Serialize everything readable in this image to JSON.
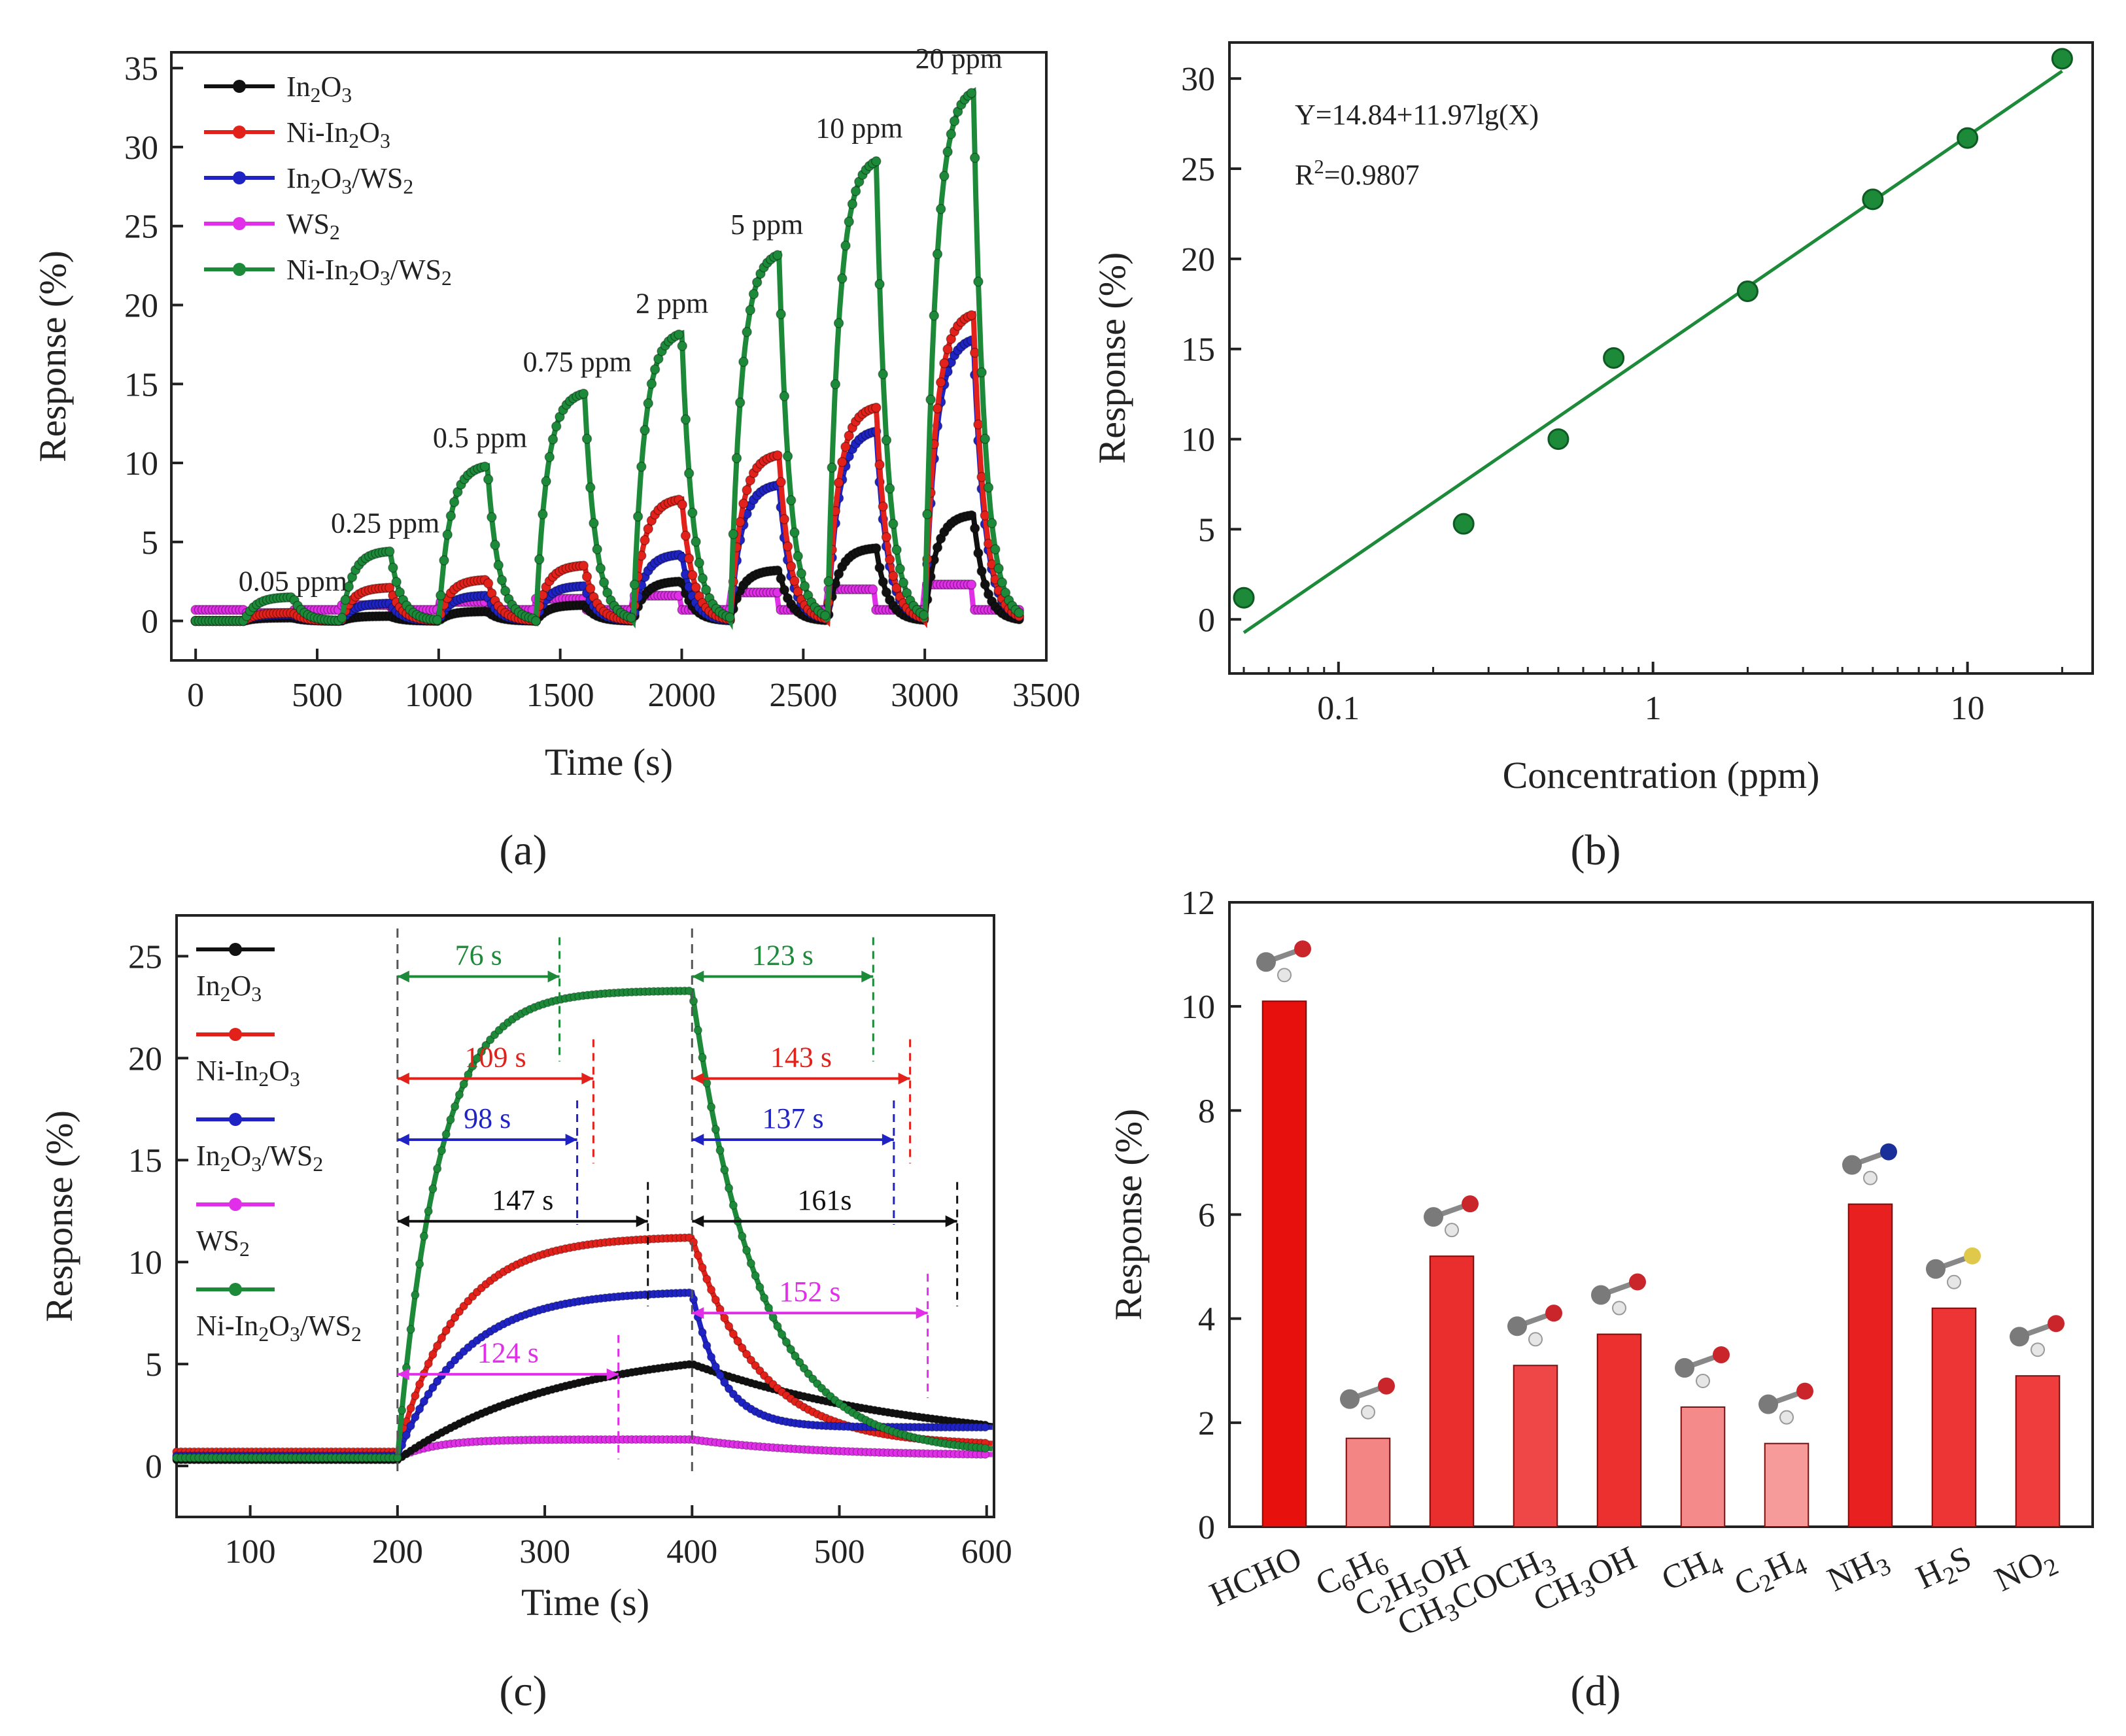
{
  "colors": {
    "black": "#111111",
    "red": "#e3211b",
    "blue": "#1f23c4",
    "magenta": "#e12ee8",
    "green": "#1d8a3a",
    "axis": "#222222"
  },
  "panel_labels": [
    "(a)",
    "(b)",
    "(c)",
    "(d)"
  ],
  "chart_data": [
    {
      "id": "a",
      "type": "line",
      "title": "",
      "xlabel": "Time (s)",
      "ylabel": "Response (%)",
      "xlim": [
        -100,
        3500
      ],
      "ylim": [
        -2.5,
        36
      ],
      "xticks": [
        0,
        500,
        1000,
        1500,
        2000,
        2500,
        3000,
        3500
      ],
      "yticks": [
        0,
        5,
        10,
        15,
        20,
        25,
        30,
        35
      ],
      "legend_position": "top-left",
      "pulse_starts": [
        200,
        600,
        1000,
        1400,
        1800,
        2200,
        2600,
        3000
      ],
      "pulse_duration": 200,
      "concentrations": [
        "0.05 ppm",
        "0.25 ppm",
        "0.5 ppm",
        "0.75 ppm",
        "2 ppm",
        "5 ppm",
        "10 ppm",
        "20 ppm"
      ],
      "series": [
        {
          "name": "In2O3",
          "color_key": "black",
          "peaks": [
            0.2,
            0.3,
            0.6,
            1.0,
            2.5,
            3.2,
            4.6,
            6.7
          ]
        },
        {
          "name": "Ni-In2O3",
          "color_key": "red",
          "peaks": [
            0.5,
            2.1,
            2.6,
            3.5,
            7.7,
            10.5,
            13.5,
            19.4
          ]
        },
        {
          "name": "In2O3/WS2",
          "color_key": "blue",
          "peaks": [
            0.4,
            1.1,
            1.6,
            2.2,
            4.2,
            8.6,
            12.0,
            17.8
          ]
        },
        {
          "name": "WS2",
          "color_key": "magenta",
          "peaks": [
            0.5,
            1.0,
            1.2,
            1.4,
            1.6,
            1.8,
            2.0,
            2.3
          ]
        },
        {
          "name": "Ni-In2O3/WS2",
          "color_key": "green",
          "peaks": [
            1.5,
            4.4,
            9.8,
            14.4,
            18.2,
            23.2,
            29.1,
            33.5
          ]
        }
      ]
    },
    {
      "id": "b",
      "type": "scatter",
      "title": "",
      "xlabel": "Concentration (ppm)",
      "ylabel": "Response (%)",
      "xscale": "log",
      "xlim": [
        0.045,
        25
      ],
      "ylim": [
        -3,
        32
      ],
      "xticks": [
        0.1,
        1,
        10
      ],
      "xtick_labels": [
        "0.1",
        "1",
        "10"
      ],
      "yticks": [
        0,
        5,
        10,
        15,
        20,
        25,
        30
      ],
      "x": [
        0.05,
        0.25,
        0.5,
        0.75,
        2,
        5,
        10,
        20
      ],
      "y": [
        1.2,
        5.3,
        10.0,
        14.5,
        18.2,
        23.3,
        26.7,
        31.1
      ],
      "fit": {
        "intercept": 14.84,
        "slope": 11.97,
        "x_range": [
          0.05,
          20
        ]
      },
      "equation": "Y=14.84+11.97lg(X)",
      "r2_prefix": "R",
      "r2_sup": "2",
      "r2_value": "=0.9807"
    },
    {
      "id": "c",
      "type": "line",
      "title": "",
      "xlabel": "Time (s)",
      "ylabel": "Response (%)",
      "xlim": [
        50,
        605
      ],
      "ylim": [
        -2.5,
        27
      ],
      "xticks": [
        100,
        200,
        300,
        400,
        500,
        600
      ],
      "yticks": [
        0,
        5,
        10,
        15,
        20,
        25
      ],
      "legend_position": "top-left",
      "gas_on": 200,
      "gas_off": 400,
      "series": [
        {
          "name": "In2O3",
          "color_key": "black",
          "base": 0.3,
          "peak": 5.0,
          "tau_r": 110,
          "tau_d": 160,
          "end_value": 0.8
        },
        {
          "name": "Ni-In2O3",
          "color_key": "red",
          "base": 0.7,
          "peak": 11.2,
          "tau_r": 40,
          "tau_d": 45,
          "end_value": 1.0
        },
        {
          "name": "In2O3/WS2",
          "color_key": "blue",
          "base": 0.5,
          "peak": 8.5,
          "tau_r": 45,
          "tau_d": 20,
          "end_value": 1.9
        },
        {
          "name": "WS2",
          "color_key": "magenta",
          "base": 0.4,
          "peak": 1.3,
          "tau_r": 25,
          "tau_d": 80,
          "end_value": 0.5
        },
        {
          "name": "Ni-In2O3/WS2",
          "color_key": "green",
          "base": 0.4,
          "peak": 23.3,
          "tau_r": 28,
          "tau_d": 45,
          "end_value": 0.6
        }
      ],
      "response_times": [
        {
          "label": "76 s",
          "color_key": "green",
          "y": 24.0,
          "x_end": 310
        },
        {
          "label": "109 s",
          "color_key": "red",
          "y": 19.0,
          "x_end": 333
        },
        {
          "label": "98 s",
          "color_key": "blue",
          "y": 16.0,
          "x_end": 322
        },
        {
          "label": "147 s",
          "color_key": "black",
          "y": 12.0,
          "x_end": 370
        },
        {
          "label": "124 s",
          "color_key": "magenta",
          "y": 4.5,
          "x_end": 350
        }
      ],
      "recovery_times": [
        {
          "label": "123 s",
          "color_key": "green",
          "y": 24.0,
          "x_end": 523
        },
        {
          "label": "143 s",
          "color_key": "red",
          "y": 19.0,
          "x_end": 548
        },
        {
          "label": "137 s",
          "color_key": "blue",
          "y": 16.0,
          "x_end": 537
        },
        {
          "label": "161s",
          "color_key": "black",
          "y": 12.0,
          "x_end": 580
        },
        {
          "label": "152 s",
          "color_key": "magenta",
          "y": 7.5,
          "x_end": 560
        }
      ]
    },
    {
      "id": "d",
      "type": "bar",
      "title": "",
      "xlabel": "",
      "ylabel": "Response (%)",
      "ylim": [
        0,
        12
      ],
      "yticks": [
        0,
        2,
        4,
        6,
        8,
        10,
        12
      ],
      "categories": [
        "HCHO",
        "C6H6",
        "C2H5OH",
        "CH3COCH3",
        "CH3OH",
        "CH4",
        "C2H4",
        "NH3",
        "H2S",
        "NO2"
      ],
      "values": [
        10.1,
        1.7,
        5.2,
        3.1,
        3.7,
        2.3,
        1.6,
        6.2,
        4.2,
        2.9
      ],
      "bar_colors": [
        "#e8100c",
        "#f38585",
        "#ea2d2d",
        "#ef4747",
        "#ec2f2f",
        "#f58a8a",
        "#f79a9a",
        "#e82020",
        "#ee3535",
        "#ef3d3d"
      ]
    }
  ]
}
